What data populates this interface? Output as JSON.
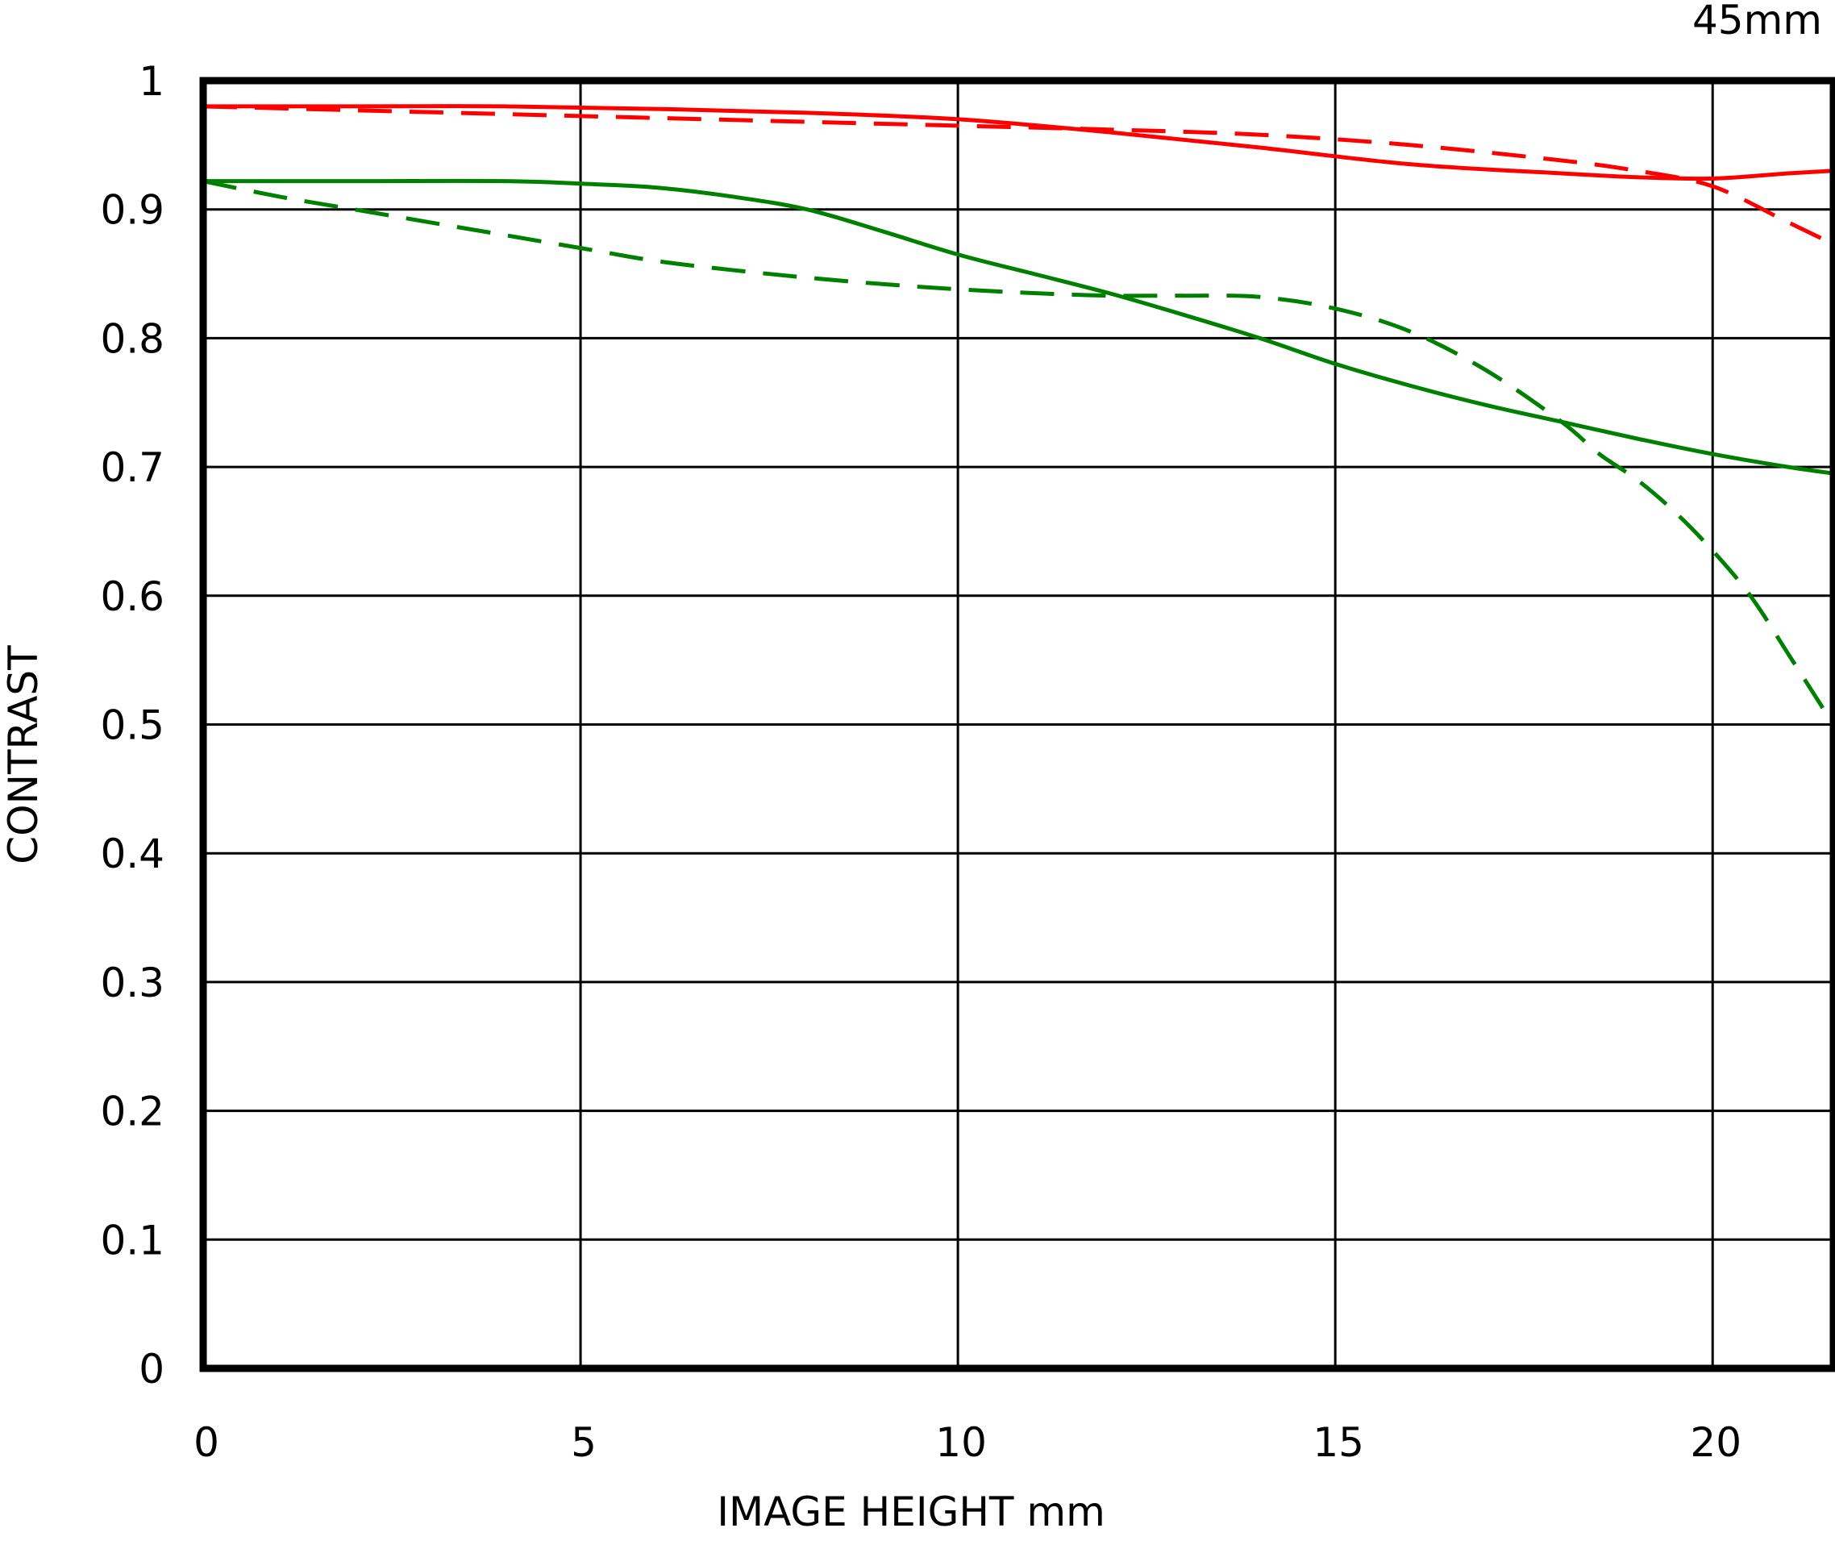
{
  "chart_data": {
    "type": "line",
    "title": "",
    "corner_label": "45mm",
    "xlabel": "IMAGE HEIGHT mm",
    "ylabel": "CONTRAST",
    "xlim": [
      0,
      21.6
    ],
    "ylim": [
      0,
      1
    ],
    "x_ticks": [
      0,
      5,
      10,
      15,
      20
    ],
    "x_tick_labels": [
      "0",
      "5",
      "10",
      "15",
      "20"
    ],
    "y_ticks": [
      0,
      0.1,
      0.2,
      0.3,
      0.4,
      0.5,
      0.6,
      0.7,
      0.8,
      0.9,
      1
    ],
    "y_tick_labels": [
      "0",
      "0.1",
      "0.2",
      "0.3",
      "0.4",
      "0.5",
      "0.6",
      "0.7",
      "0.8",
      "0.9",
      "1"
    ],
    "grid": true,
    "legend": "none",
    "series": [
      {
        "color": "#ff0000",
        "style": "solid",
        "x": [
          0,
          2,
          4,
          6,
          8,
          10,
          12,
          14,
          16,
          18,
          19,
          20,
          21,
          21.6
        ],
        "y": [
          0.98,
          0.98,
          0.98,
          0.978,
          0.975,
          0.97,
          0.96,
          0.948,
          0.935,
          0.928,
          0.925,
          0.924,
          0.928,
          0.93
        ]
      },
      {
        "color": "#ff0000",
        "style": "dashed",
        "x": [
          0,
          2,
          4,
          6,
          8,
          10,
          12,
          14,
          16,
          18,
          19,
          20,
          21,
          21.6
        ],
        "y": [
          0.98,
          0.977,
          0.974,
          0.971,
          0.968,
          0.965,
          0.962,
          0.958,
          0.95,
          0.938,
          0.93,
          0.918,
          0.89,
          0.873
        ]
      },
      {
        "color": "#008000",
        "style": "solid",
        "x": [
          0,
          2,
          4,
          5,
          6,
          7,
          8,
          9,
          10,
          11,
          12,
          13,
          14,
          15,
          16,
          17,
          18,
          19,
          20,
          21,
          21.6
        ],
        "y": [
          0.922,
          0.922,
          0.922,
          0.92,
          0.917,
          0.91,
          0.9,
          0.883,
          0.865,
          0.85,
          0.835,
          0.818,
          0.8,
          0.78,
          0.763,
          0.748,
          0.735,
          0.722,
          0.71,
          0.7,
          0.695
        ]
      },
      {
        "color": "#008000",
        "style": "dashed",
        "x": [
          0,
          1,
          2,
          3,
          4,
          5,
          6,
          7,
          8,
          9,
          10,
          11,
          12,
          13,
          14,
          15,
          16,
          17,
          18,
          18.5,
          19,
          19.5,
          20,
          20.5,
          21,
          21.6
        ],
        "y": [
          0.922,
          0.91,
          0.9,
          0.89,
          0.88,
          0.87,
          0.86,
          0.853,
          0.847,
          0.842,
          0.838,
          0.835,
          0.833,
          0.833,
          0.832,
          0.823,
          0.805,
          0.775,
          0.735,
          0.71,
          0.69,
          0.665,
          0.635,
          0.6,
          0.555,
          0.5
        ]
      }
    ]
  }
}
